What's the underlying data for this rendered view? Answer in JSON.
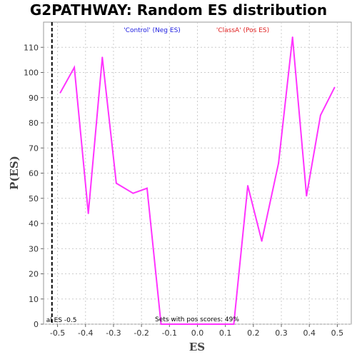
{
  "chart_data": {
    "type": "line",
    "title": "G2PATHWAY: Random ES distribution",
    "xlabel": "ES",
    "ylabel": "P(ES)",
    "xlim": [
      -0.55,
      0.55
    ],
    "ylim": [
      0,
      120
    ],
    "x_ticks": [
      "-0.5",
      "-0.4",
      "-0.3",
      "-0.2",
      "-0.1",
      "0.0",
      "0.1",
      "0.2",
      "0.3",
      "0.4",
      "0.5"
    ],
    "y_ticks": [
      "0",
      "10",
      "20",
      "30",
      "40",
      "50",
      "60",
      "70",
      "80",
      "90",
      "100",
      "110"
    ],
    "grid": true,
    "legend": [
      {
        "label": "'Control' (Neg ES)",
        "color": "#2020e0"
      },
      {
        "label": "'ClassA' (Pos ES)",
        "color": "#e02020"
      }
    ],
    "series": [
      {
        "color": "#ff33ff",
        "x": [
          -0.49,
          -0.44,
          -0.39,
          -0.34,
          -0.29,
          -0.23,
          -0.18,
          -0.13,
          -0.08,
          -0.02,
          0.03,
          0.08,
          0.13,
          0.18,
          0.23,
          0.29,
          0.34,
          0.39,
          0.44,
          0.49
        ],
        "y": [
          92,
          102,
          44,
          106,
          56,
          52,
          54,
          0,
          0,
          0,
          0,
          0,
          0,
          55,
          33,
          64,
          114,
          51,
          83,
          94
        ]
      }
    ],
    "actual_es": {
      "value": -0.52,
      "label": "al ES -0.5"
    },
    "annotation": "Sets with pos scores: 49%"
  }
}
